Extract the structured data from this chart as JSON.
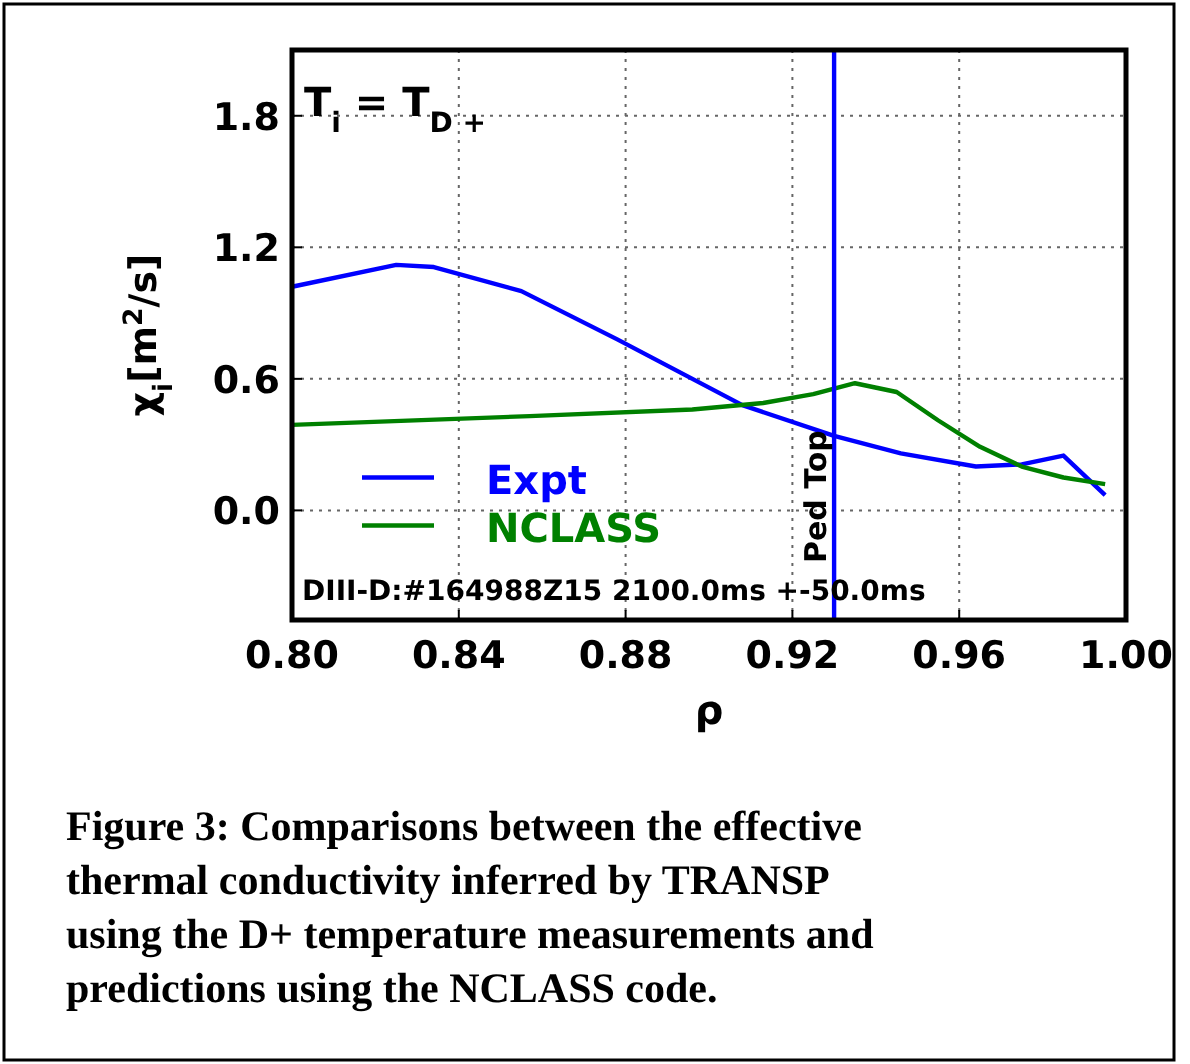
{
  "chart_data": {
    "type": "line",
    "xlabel": "ρ",
    "ylabel": "χ$_{i}$[m$^{2}$/s]",
    "xlim": [
      0.8,
      1.0
    ],
    "ylim": [
      -0.5,
      2.1
    ],
    "xticks": [
      {
        "value": 0.8,
        "label": "0.80"
      },
      0.84,
      0.88,
      0.92,
      0.96,
      {
        "value": 1.0,
        "label": "1.00"
      }
    ],
    "yticks": [
      {
        "value": 0,
        "label": "0.0"
      },
      0.6,
      1.2,
      1.8
    ],
    "grid": true,
    "legend": "bottom left",
    "line_style": "solid",
    "marker": "none",
    "series": [
      {
        "name": "Expt",
        "color": "#0000ff",
        "x": [
          0.8,
          0.825,
          0.834,
          0.855,
          0.878,
          0.908,
          0.93,
          0.946,
          0.964,
          0.975,
          0.985,
          0.995
        ],
        "values": [
          1.02,
          1.12,
          1.11,
          1.0,
          0.78,
          0.48,
          0.34,
          0.26,
          0.2,
          0.21,
          0.25,
          0.07
        ]
      },
      {
        "name": "NCLASS",
        "color": "#008000",
        "x": [
          0.8,
          0.857,
          0.896,
          0.913,
          0.925,
          0.935,
          0.945,
          0.955,
          0.965,
          0.975,
          0.985,
          0.995
        ],
        "values": [
          0.39,
          0.43,
          0.46,
          0.49,
          0.53,
          0.58,
          0.54,
          0.41,
          0.29,
          0.2,
          0.15,
          0.12
        ]
      }
    ],
    "ref_lines": [
      {
        "axis": "x",
        "value": 0.93,
        "label": "Ped Top",
        "color": "#0000ff"
      }
    ],
    "annotations": [
      "T$_{i}$ = T$_{D +}$",
      "DIII-D:#164988Z15 2100.0ms +-50.0ms",
      "Figure 3: Comparisons between the effective\nthermal conductivity inferred by TRANSP\nusing the D+ temperature measurements and\npredictions using the NCLASS code."
    ]
  }
}
